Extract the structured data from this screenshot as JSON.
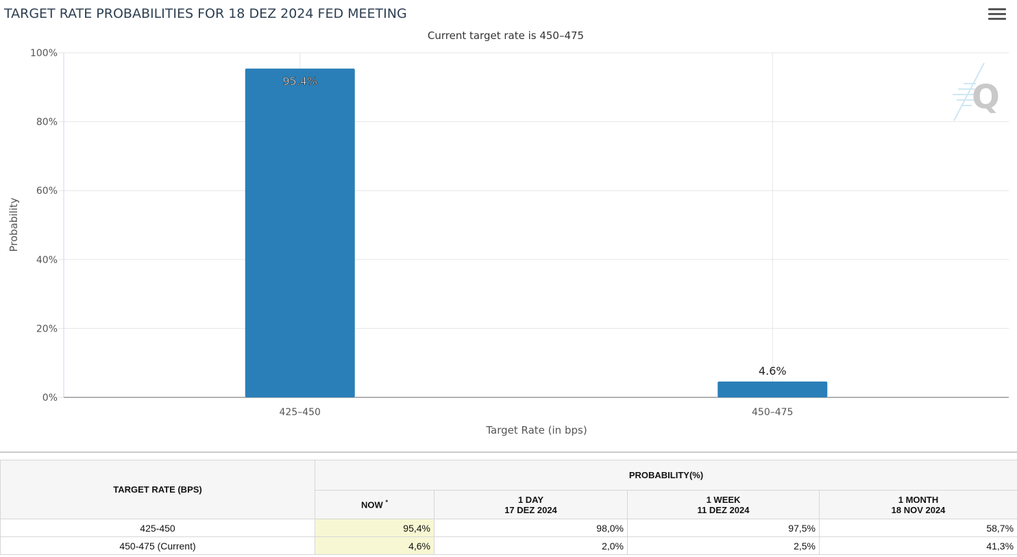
{
  "header": {
    "title": "TARGET RATE PROBABILITIES FOR 18 DEZ 2024 FED MEETING",
    "subtitle": "Current target rate is 450–475"
  },
  "chart_data": {
    "type": "bar",
    "categories": [
      "425–450",
      "450–475"
    ],
    "values": [
      95.4,
      4.6
    ],
    "data_labels": [
      "95.4%",
      "4.6%"
    ],
    "title": "TARGET RATE PROBABILITIES FOR 18 DEZ 2024 FED MEETING",
    "subtitle": "Current target rate is 450–475",
    "xlabel": "Target Rate (in bps)",
    "ylabel": "Probability",
    "ylim": [
      0,
      100
    ],
    "yticks": [
      "0%",
      "20%",
      "40%",
      "60%",
      "80%",
      "100%"
    ],
    "ytick_values": [
      0,
      20,
      40,
      60,
      80,
      100
    ],
    "grid": true,
    "bar_color": "#2a7fb8"
  },
  "table": {
    "col_target": "TARGET RATE (BPS)",
    "col_probability": "PROBABILITY(%)",
    "now": "NOW",
    "now_mark": "*",
    "day_label": "1 DAY",
    "day_date": "17 DEZ 2024",
    "week_label": "1 WEEK",
    "week_date": "11 DEZ 2024",
    "month_label": "1 MONTH",
    "month_date": "18 NOV 2024",
    "rows": [
      {
        "rate": "425-450",
        "now": "95,4%",
        "day": "98,0%",
        "week": "97,5%",
        "month": "58,7%"
      },
      {
        "rate": "450-475 (Current)",
        "now": "4,6%",
        "day": "2,0%",
        "week": "2,5%",
        "month": "41,3%"
      }
    ]
  }
}
